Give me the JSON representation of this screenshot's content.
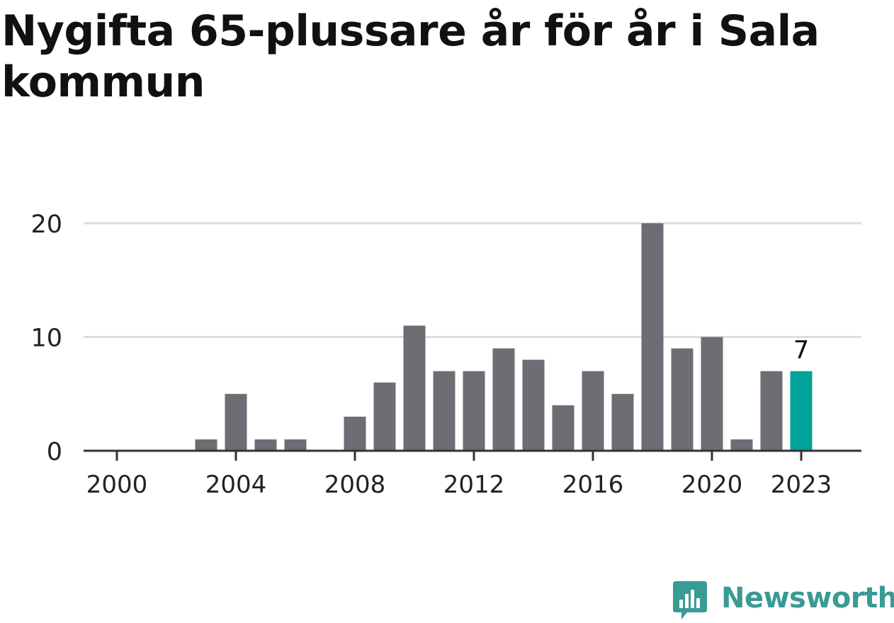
{
  "chart_data": {
    "type": "bar",
    "title": "Nygifta 65-plussare år för år i Sala kommun",
    "categories": [
      "2000",
      "2001",
      "2002",
      "2003",
      "2004",
      "2005",
      "2006",
      "2007",
      "2008",
      "2009",
      "2010",
      "2011",
      "2012",
      "2013",
      "2014",
      "2015",
      "2016",
      "2017",
      "2018",
      "2019",
      "2020",
      "2021",
      "2022",
      "2023"
    ],
    "values": [
      0,
      0,
      0,
      1,
      5,
      1,
      1,
      0,
      3,
      6,
      11,
      7,
      7,
      9,
      8,
      4,
      7,
      5,
      20,
      9,
      10,
      1,
      7,
      7
    ],
    "x_tick_labels": [
      "2000",
      "2004",
      "2008",
      "2012",
      "2016",
      "2020",
      "2023"
    ],
    "y_ticks": [
      0,
      10,
      20
    ],
    "ylim": [
      0,
      20
    ],
    "highlight": {
      "category": "2023",
      "label": "7"
    },
    "xlabel": "",
    "ylabel": "",
    "grid": true,
    "colors": {
      "bar": "#6e6d73",
      "highlight": "#00a39a",
      "grid": "#dddddd",
      "axis": "#333333",
      "text": "#222222"
    }
  },
  "brand": {
    "name": "Newsworthy",
    "color": "#3a9a94",
    "icon": "bar-chart-speech-bubble-icon"
  }
}
